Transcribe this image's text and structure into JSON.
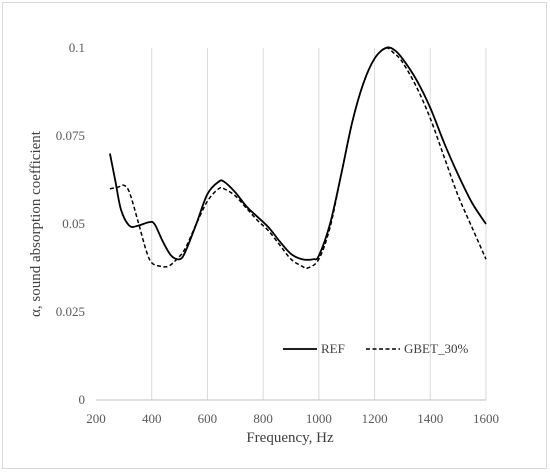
{
  "chart_data": {
    "type": "line",
    "xlabel": "Frequency, Hz",
    "ylabel": "α, sound absorption coefficient",
    "xlim": [
      200,
      1600
    ],
    "ylim": [
      0,
      0.1
    ],
    "x_ticks": [
      "200",
      "400",
      "600",
      "800",
      "1000",
      "1200",
      "1400",
      "1600"
    ],
    "y_ticks": [
      "0",
      "0.025",
      "0.05",
      "0.075",
      "0.1"
    ],
    "grid": "vertical",
    "legend_position": "bottom-right",
    "series": [
      {
        "name": "REF",
        "style": "solid",
        "color": "#000000",
        "points": [
          [
            250,
            0.07
          ],
          [
            270,
            0.062
          ],
          [
            290,
            0.054
          ],
          [
            320,
            0.0495
          ],
          [
            350,
            0.0495
          ],
          [
            390,
            0.0505
          ],
          [
            410,
            0.05
          ],
          [
            440,
            0.045
          ],
          [
            470,
            0.041
          ],
          [
            500,
            0.04
          ],
          [
            520,
            0.042
          ],
          [
            560,
            0.05
          ],
          [
            600,
            0.0585
          ],
          [
            640,
            0.062
          ],
          [
            660,
            0.062
          ],
          [
            700,
            0.059
          ],
          [
            740,
            0.055
          ],
          [
            780,
            0.052
          ],
          [
            820,
            0.049
          ],
          [
            860,
            0.045
          ],
          [
            900,
            0.0415
          ],
          [
            940,
            0.04
          ],
          [
            980,
            0.04
          ],
          [
            1000,
            0.041
          ],
          [
            1040,
            0.05
          ],
          [
            1080,
            0.064
          ],
          [
            1120,
            0.079
          ],
          [
            1160,
            0.09
          ],
          [
            1200,
            0.097
          ],
          [
            1240,
            0.1
          ],
          [
            1270,
            0.0995
          ],
          [
            1300,
            0.097
          ],
          [
            1350,
            0.091
          ],
          [
            1400,
            0.083
          ],
          [
            1450,
            0.073
          ],
          [
            1500,
            0.064
          ],
          [
            1550,
            0.056
          ],
          [
            1600,
            0.05
          ]
        ]
      },
      {
        "name": "GBET_30%",
        "style": "dashed",
        "color": "#000000",
        "points": [
          [
            250,
            0.06
          ],
          [
            280,
            0.0605
          ],
          [
            300,
            0.061
          ],
          [
            320,
            0.059
          ],
          [
            350,
            0.051
          ],
          [
            380,
            0.0425
          ],
          [
            400,
            0.039
          ],
          [
            430,
            0.038
          ],
          [
            460,
            0.038
          ],
          [
            490,
            0.04
          ],
          [
            520,
            0.043
          ],
          [
            560,
            0.05
          ],
          [
            600,
            0.0565
          ],
          [
            640,
            0.06
          ],
          [
            660,
            0.06
          ],
          [
            700,
            0.058
          ],
          [
            740,
            0.0545
          ],
          [
            780,
            0.051
          ],
          [
            820,
            0.048
          ],
          [
            860,
            0.044
          ],
          [
            900,
            0.04
          ],
          [
            940,
            0.038
          ],
          [
            960,
            0.0375
          ],
          [
            1000,
            0.04
          ],
          [
            1040,
            0.049
          ],
          [
            1080,
            0.064
          ],
          [
            1120,
            0.079
          ],
          [
            1160,
            0.09
          ],
          [
            1200,
            0.097
          ],
          [
            1240,
            0.1
          ],
          [
            1270,
            0.0985
          ],
          [
            1300,
            0.096
          ],
          [
            1350,
            0.089
          ],
          [
            1400,
            0.08
          ],
          [
            1450,
            0.069
          ],
          [
            1500,
            0.058
          ],
          [
            1550,
            0.049
          ],
          [
            1600,
            0.04
          ]
        ]
      }
    ]
  }
}
